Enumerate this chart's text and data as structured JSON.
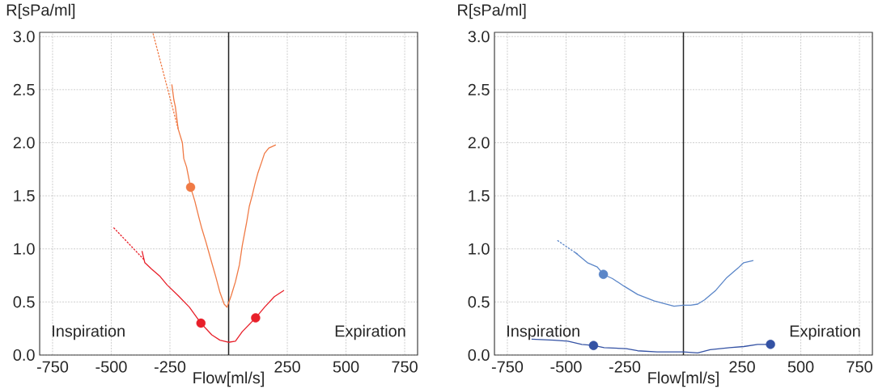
{
  "chart_data": [
    {
      "type": "line",
      "xlabel": "Flow[ml/s]",
      "ylabel": "R[sPa/ml]",
      "annotations": [
        "Inspiration",
        "Expiration"
      ],
      "xlim": [
        -805,
        805
      ],
      "ylim": [
        0,
        3.04
      ],
      "xticks": [
        -750,
        -500,
        -250,
        {
          "value": 0,
          "label": null
        },
        250,
        500,
        750
      ],
      "yticks": [
        {
          "value": 0,
          "label": "0.0"
        },
        {
          "value": 0.5,
          "label": "0.5"
        },
        {
          "value": 1,
          "label": "1.0"
        },
        {
          "value": 1.5,
          "label": "1.5"
        },
        {
          "value": 2,
          "label": "2.0"
        },
        {
          "value": 2.5,
          "label": "2.5"
        },
        {
          "value": 3,
          "label": "3.0"
        }
      ],
      "grid": true,
      "ref_lines": [
        {
          "axis": "x",
          "value": 0,
          "color": "#222222"
        }
      ],
      "series": [
        {
          "type": "line",
          "line_style": "dashed",
          "color": "#f07a45",
          "x": [
            -322,
            -215
          ],
          "values": [
            3.03,
            2.13
          ]
        },
        {
          "type": "line",
          "color": "#f07a45",
          "x": [
            -242,
            -233,
            -227,
            -215,
            -197,
            -191,
            -179,
            -162,
            -144,
            -126,
            -114,
            -96,
            -72,
            -55,
            -37,
            -19,
            -7,
            11,
            29,
            46,
            58,
            76,
            88,
            100,
            112,
            124,
            141,
            153,
            171,
            201
          ],
          "values": [
            2.55,
            2.4,
            2.34,
            2.13,
            2.0,
            1.85,
            1.77,
            1.58,
            1.45,
            1.29,
            1.19,
            1.06,
            0.87,
            0.74,
            0.59,
            0.48,
            0.45,
            0.56,
            0.69,
            0.85,
            1.03,
            1.24,
            1.4,
            1.5,
            1.61,
            1.71,
            1.82,
            1.9,
            1.95,
            1.98
          ]
        },
        {
          "type": "scatter",
          "marker": "circle",
          "color": "#f07a45",
          "x": [
            -162
          ],
          "values": [
            1.58
          ]
        },
        {
          "type": "line",
          "line_style": "dashed",
          "color": "#e8202a",
          "x": [
            -490,
            -357
          ],
          "values": [
            1.2,
            0.89
          ]
        },
        {
          "type": "line",
          "color": "#e8202a",
          "x": [
            -369,
            -357,
            -328,
            -292,
            -262,
            -215,
            -167,
            -118,
            -72,
            -37,
            -1,
            29,
            58,
            115,
            153,
            195,
            236
          ],
          "values": [
            0.98,
            0.87,
            0.81,
            0.74,
            0.66,
            0.56,
            0.45,
            0.3,
            0.19,
            0.14,
            0.12,
            0.13,
            0.22,
            0.35,
            0.45,
            0.55,
            0.61
          ]
        },
        {
          "type": "scatter",
          "marker": "circle",
          "color": "#e8202a",
          "x": [
            -118,
            115
          ],
          "values": [
            0.3,
            0.35
          ]
        }
      ]
    },
    {
      "type": "line",
      "xlabel": "Flow[ml/s]",
      "ylabel": "R[sPa/ml]",
      "annotations": [
        "Inspiration",
        "Expiration"
      ],
      "xlim": [
        -805,
        805
      ],
      "ylim": [
        0,
        3.04
      ],
      "xticks": [
        -750,
        -500,
        -250,
        {
          "value": 0,
          "label": null
        },
        250,
        500,
        750
      ],
      "yticks": [
        {
          "value": 0,
          "label": "0.0"
        },
        {
          "value": 0.5,
          "label": "0.5"
        },
        {
          "value": 1,
          "label": "1.0"
        },
        {
          "value": 1.5,
          "label": "1.5"
        },
        {
          "value": 2,
          "label": "2.0"
        },
        {
          "value": 2.5,
          "label": "2.5"
        },
        {
          "value": 3,
          "label": "3.0"
        }
      ],
      "grid": true,
      "ref_lines": [
        {
          "axis": "x",
          "value": 0,
          "color": "#222222"
        }
      ],
      "series": [
        {
          "type": "line",
          "line_style": "dashed",
          "color": "#5b86c8",
          "x": [
            -537,
            -451
          ],
          "values": [
            1.08,
            0.95
          ]
        },
        {
          "type": "line",
          "color": "#5b86c8",
          "x": [
            -463,
            -409,
            -367,
            -341,
            -302,
            -254,
            -195,
            -124,
            -40,
            0,
            31,
            61,
            90,
            138,
            185,
            233,
            257,
            298
          ],
          "values": [
            0.97,
            0.87,
            0.83,
            0.76,
            0.72,
            0.65,
            0.57,
            0.51,
            0.46,
            0.47,
            0.47,
            0.48,
            0.52,
            0.61,
            0.73,
            0.82,
            0.87,
            0.89
          ]
        },
        {
          "type": "scatter",
          "marker": "circle",
          "color": "#5b86c8",
          "x": [
            -341
          ],
          "values": [
            0.76
          ]
        },
        {
          "type": "line",
          "color": "#3452a4",
          "x": [
            -647,
            -552,
            -492,
            -433,
            -383,
            -338,
            -243,
            -195,
            -112,
            0,
            61,
            114,
            197,
            257,
            316,
            371
          ],
          "values": [
            0.15,
            0.14,
            0.13,
            0.1,
            0.09,
            0.07,
            0.06,
            0.04,
            0.03,
            0.03,
            0.02,
            0.05,
            0.07,
            0.08,
            0.1,
            0.1
          ]
        },
        {
          "type": "scatter",
          "marker": "circle",
          "color": "#3452a4",
          "x": [
            -383,
            371
          ],
          "values": [
            0.09,
            0.1
          ]
        }
      ]
    }
  ]
}
